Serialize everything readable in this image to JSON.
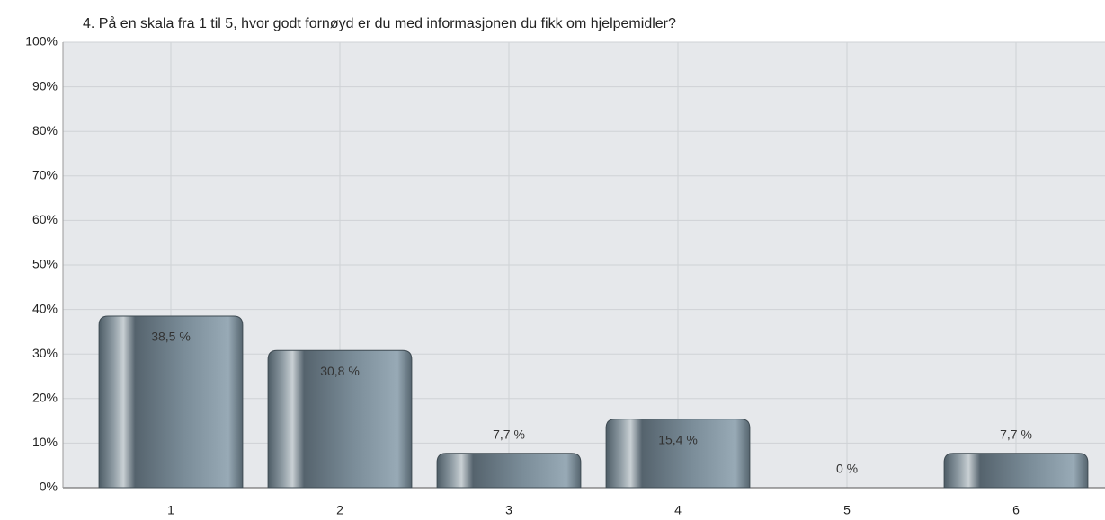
{
  "chart_data": {
    "type": "bar",
    "title": "4. På en skala fra 1 til 5, hvor godt fornøyd er du med informasjonen du fikk om hjelpemidler?",
    "categories": [
      "1",
      "2",
      "3",
      "4",
      "5",
      "6"
    ],
    "values": [
      38.5,
      30.8,
      7.7,
      15.4,
      0,
      7.7
    ],
    "value_labels": [
      "38,5 %",
      "30,8 %",
      "7,7 %",
      "15,4 %",
      "0 %",
      "7,7 %"
    ],
    "color": "#6b7f8c",
    "ylim": [
      0,
      100
    ],
    "yticks": [
      {
        "value": 0,
        "label": "0%"
      },
      {
        "value": 10,
        "label": "10%"
      },
      {
        "value": 20,
        "label": "20%"
      },
      {
        "value": 30,
        "label": "30%"
      },
      {
        "value": 40,
        "label": "40%"
      },
      {
        "value": 50,
        "label": "50%"
      },
      {
        "value": 60,
        "label": "60%"
      },
      {
        "value": 70,
        "label": "70%"
      },
      {
        "value": 80,
        "label": "80%"
      },
      {
        "value": 90,
        "label": "90%"
      },
      {
        "value": 100,
        "label": "100%"
      }
    ],
    "grid": true
  }
}
